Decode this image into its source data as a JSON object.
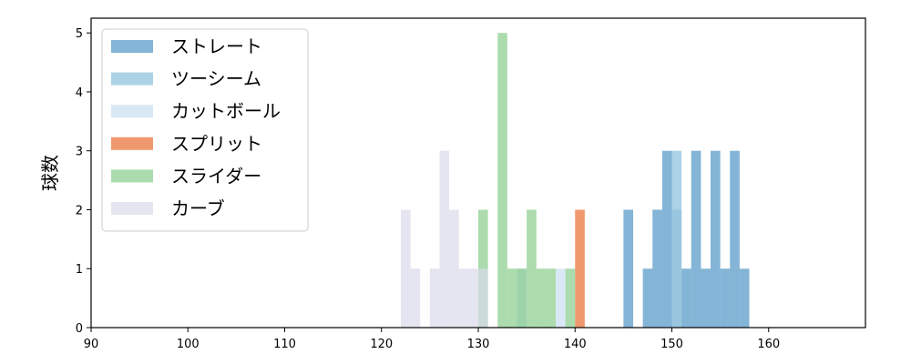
{
  "chart_data": {
    "type": "bar",
    "title": "",
    "xlabel": "",
    "ylabel": "球数",
    "xlim": [
      90,
      170
    ],
    "ylim": [
      0,
      5.25
    ],
    "x_ticks": [
      90,
      100,
      110,
      120,
      130,
      140,
      150,
      160
    ],
    "y_ticks": [
      0,
      1,
      2,
      3,
      4,
      5
    ],
    "bin_width": 1,
    "grid": false,
    "legend_position": "top-left",
    "series": [
      {
        "name": "ストレート",
        "color": "#1f77b4",
        "opacity": 0.55,
        "bins": [
          {
            "x": 145,
            "count": 2
          },
          {
            "x": 147,
            "count": 1
          },
          {
            "x": 148,
            "count": 2
          },
          {
            "x": 149,
            "count": 3
          },
          {
            "x": 150,
            "count": 2
          },
          {
            "x": 151,
            "count": 1
          },
          {
            "x": 152,
            "count": 3
          },
          {
            "x": 153,
            "count": 1
          },
          {
            "x": 154,
            "count": 3
          },
          {
            "x": 155,
            "count": 1
          },
          {
            "x": 156,
            "count": 3
          },
          {
            "x": 157,
            "count": 1
          }
        ]
      },
      {
        "name": "ツーシーム",
        "color": "#9ecae1",
        "opacity": 0.85,
        "bins": [
          {
            "x": 150,
            "count": 3
          }
        ]
      },
      {
        "name": "カットボール",
        "color": "#c6dbef",
        "opacity": 0.65,
        "bins": [
          {
            "x": 134,
            "count": 1
          },
          {
            "x": 138,
            "count": 1
          }
        ]
      },
      {
        "name": "スプリット",
        "color": "#e6550d",
        "opacity": 0.6,
        "bins": [
          {
            "x": 140,
            "count": 2
          }
        ]
      },
      {
        "name": "スライダー",
        "color": "#74c476",
        "opacity": 0.6,
        "bins": [
          {
            "x": 130,
            "count": 2
          },
          {
            "x": 132,
            "count": 5
          },
          {
            "x": 133,
            "count": 1
          },
          {
            "x": 134,
            "count": 1
          },
          {
            "x": 135,
            "count": 2
          },
          {
            "x": 136,
            "count": 1
          },
          {
            "x": 137,
            "count": 1
          },
          {
            "x": 139,
            "count": 1
          }
        ]
      },
      {
        "name": "カーブ",
        "color": "#dadaeb",
        "opacity": 0.7,
        "bins": [
          {
            "x": 122,
            "count": 2
          },
          {
            "x": 123,
            "count": 1
          },
          {
            "x": 125,
            "count": 1
          },
          {
            "x": 126,
            "count": 3
          },
          {
            "x": 127,
            "count": 2
          },
          {
            "x": 128,
            "count": 1
          },
          {
            "x": 129,
            "count": 1
          },
          {
            "x": 130,
            "count": 1
          }
        ]
      }
    ]
  }
}
